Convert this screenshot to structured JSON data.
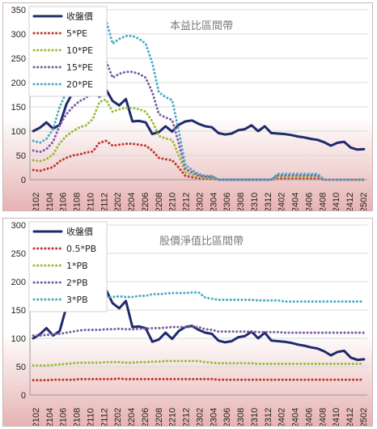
{
  "colors": {
    "price": "#1f2a6b",
    "band1": "#c0392b",
    "band2": "#9bbb3b",
    "band3": "#7b5ea7",
    "band4": "#4bacc6",
    "grid": "#d9d9d9",
    "plot_bg_top": "#ffffff",
    "plot_bg_bottom": "#e7b3b3"
  },
  "chart_data": [
    {
      "type": "line",
      "title": "本益比區間帶",
      "ylim": [
        0,
        350
      ],
      "yticks": [
        0,
        50,
        100,
        150,
        200,
        250,
        300,
        350
      ],
      "grid": true,
      "legend_position": "top-left",
      "x_labels": [
        "2102",
        "2104",
        "2106",
        "2108",
        "2110",
        "2112",
        "2202",
        "2204",
        "2206",
        "2208",
        "2210",
        "2212",
        "2302",
        "2304",
        "2306",
        "2308",
        "2310",
        "2312",
        "2402",
        "2404",
        "2406",
        "2408",
        "2410",
        "2412",
        "2502"
      ],
      "series": [
        {
          "name": "收盤價",
          "style": "solid",
          "values": [
            100,
            107,
            118,
            105,
            113,
            155,
            180,
            200,
            195,
            183,
            171,
            186,
            162,
            153,
            166,
            120,
            121,
            118,
            94,
            98,
            110,
            99,
            113,
            120,
            122,
            115,
            110,
            108,
            96,
            93,
            95,
            102,
            104,
            112,
            100,
            110,
            96,
            95,
            94,
            92,
            89,
            87,
            84,
            82,
            77,
            70,
            76,
            78,
            66,
            62,
            63
          ]
        },
        {
          "name": "5*PE",
          "style": "dotted",
          "values": [
            20,
            18,
            22,
            26,
            38,
            45,
            50,
            52,
            56,
            58,
            76,
            80,
            70,
            72,
            74,
            74,
            72,
            70,
            60,
            45,
            42,
            40,
            25,
            8,
            5,
            3,
            2,
            2,
            0,
            0,
            0,
            0,
            0,
            0,
            0,
            0,
            0,
            3,
            3,
            3,
            3,
            3,
            3,
            3,
            0,
            0,
            0,
            0,
            0,
            0,
            0
          ]
        },
        {
          "name": "10*PE",
          "style": "dotted",
          "values": [
            40,
            38,
            42,
            52,
            75,
            90,
            100,
            108,
            112,
            125,
            160,
            165,
            140,
            145,
            148,
            148,
            145,
            140,
            120,
            90,
            85,
            82,
            50,
            15,
            10,
            6,
            4,
            4,
            0,
            0,
            0,
            0,
            0,
            0,
            0,
            0,
            0,
            6,
            6,
            6,
            6,
            6,
            6,
            6,
            0,
            0,
            0,
            0,
            0,
            0,
            0
          ]
        },
        {
          "name": "15*PE",
          "style": "dotted",
          "values": [
            60,
            57,
            63,
            78,
            112,
            135,
            150,
            162,
            168,
            188,
            240,
            245,
            210,
            218,
            222,
            222,
            218,
            210,
            180,
            135,
            128,
            123,
            75,
            22,
            15,
            9,
            6,
            6,
            0,
            0,
            0,
            0,
            0,
            0,
            0,
            0,
            0,
            9,
            9,
            9,
            9,
            9,
            9,
            9,
            0,
            0,
            0,
            0,
            0,
            0,
            0
          ]
        },
        {
          "name": "20*PE",
          "style": "dotted",
          "values": [
            80,
            76,
            84,
            104,
            150,
            180,
            200,
            216,
            224,
            250,
            320,
            330,
            280,
            290,
            296,
            296,
            290,
            280,
            240,
            180,
            170,
            164,
            100,
            30,
            20,
            12,
            8,
            8,
            0,
            0,
            0,
            0,
            0,
            0,
            0,
            0,
            0,
            12,
            12,
            12,
            12,
            12,
            12,
            12,
            0,
            0,
            0,
            0,
            0,
            0,
            0
          ]
        }
      ]
    },
    {
      "type": "line",
      "title": "股價淨值比區間帶",
      "ylim": [
        0,
        300
      ],
      "yticks": [
        0,
        50,
        100,
        150,
        200,
        250,
        300
      ],
      "grid": true,
      "legend_position": "top-left",
      "x_labels": [
        "2102",
        "2104",
        "2106",
        "2108",
        "2110",
        "2112",
        "2202",
        "2204",
        "2206",
        "2208",
        "2210",
        "2212",
        "2302",
        "2304",
        "2306",
        "2308",
        "2310",
        "2312",
        "2402",
        "2404",
        "2406",
        "2408",
        "2410",
        "2412",
        "2502"
      ],
      "series": [
        {
          "name": "收盤價",
          "style": "solid",
          "values": [
            100,
            107,
            118,
            105,
            113,
            155,
            180,
            200,
            195,
            183,
            171,
            186,
            162,
            153,
            166,
            120,
            121,
            118,
            94,
            98,
            110,
            99,
            113,
            120,
            122,
            115,
            110,
            108,
            96,
            93,
            95,
            102,
            104,
            112,
            100,
            110,
            96,
            95,
            94,
            92,
            89,
            87,
            84,
            82,
            77,
            70,
            76,
            78,
            66,
            62,
            63
          ]
        },
        {
          "name": "0.5*PB",
          "style": "dotted",
          "values": [
            26,
            26,
            26,
            27,
            27,
            27,
            27,
            28,
            28,
            28,
            28,
            28,
            28,
            29,
            28,
            28,
            28,
            28,
            28,
            28,
            28,
            28,
            28,
            28,
            28,
            28,
            28,
            28,
            27,
            27,
            27,
            27,
            27,
            27,
            27,
            27,
            27,
            27,
            27,
            27,
            27,
            27,
            27,
            27,
            27,
            27,
            27,
            27,
            27,
            27,
            27
          ]
        },
        {
          "name": "1*PB",
          "style": "dotted",
          "values": [
            52,
            52,
            52,
            53,
            54,
            55,
            56,
            57,
            57,
            57,
            57,
            58,
            58,
            58,
            57,
            57,
            58,
            58,
            59,
            59,
            60,
            60,
            60,
            60,
            60,
            60,
            58,
            57,
            56,
            56,
            56,
            56,
            56,
            56,
            55,
            55,
            55,
            55,
            55,
            55,
            55,
            55,
            55,
            55,
            55,
            55,
            55,
            55,
            55,
            55,
            55
          ]
        },
        {
          "name": "2*PB",
          "style": "dotted",
          "values": [
            105,
            105,
            106,
            107,
            108,
            110,
            112,
            114,
            115,
            115,
            115,
            116,
            116,
            117,
            116,
            116,
            117,
            117,
            118,
            118,
            119,
            120,
            120,
            120,
            120,
            120,
            116,
            115,
            112,
            112,
            112,
            112,
            112,
            112,
            111,
            111,
            111,
            111,
            110,
            110,
            110,
            110,
            110,
            110,
            110,
            110,
            110,
            110,
            110,
            110,
            110
          ]
        },
        {
          "name": "3*PB",
          "style": "dotted",
          "values": [
            155,
            155,
            156,
            158,
            162,
            165,
            168,
            171,
            172,
            172,
            172,
            173,
            173,
            174,
            173,
            173,
            175,
            175,
            178,
            178,
            179,
            180,
            180,
            180,
            181,
            181,
            172,
            170,
            168,
            168,
            168,
            168,
            168,
            168,
            167,
            167,
            167,
            167,
            165,
            165,
            165,
            165,
            165,
            165,
            165,
            165,
            165,
            165,
            165,
            165,
            165
          ]
        }
      ]
    }
  ]
}
